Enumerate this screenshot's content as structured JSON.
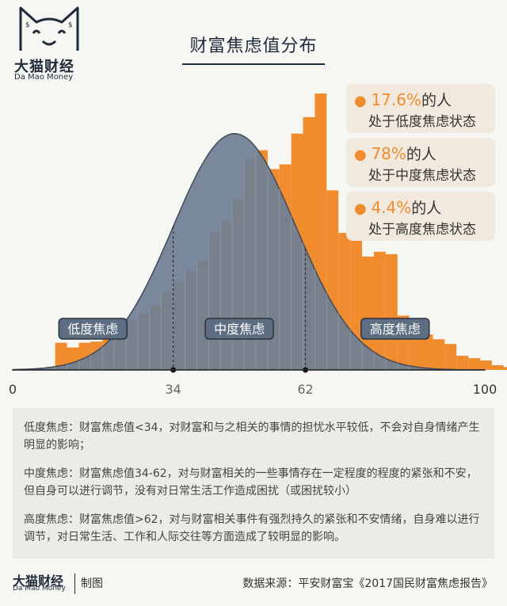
{
  "brand": {
    "cn": "大猫财经",
    "en": "Da Mao Money"
  },
  "title": "财富焦虑值分布",
  "stats": [
    {
      "pct": "17.6%",
      "suffix": "的人",
      "line2": "处于低度焦虑状态"
    },
    {
      "pct": "78%",
      "suffix": "的人",
      "line2": "处于中度焦虑状态"
    },
    {
      "pct": "4.4%",
      "suffix": "的人",
      "line2": "处于高度焦虑状态"
    }
  ],
  "colors": {
    "bar": "#f08c2e",
    "curve_fill": "#6f7f92",
    "curve_stroke": "#3f4a58",
    "label_fill": "#5d6e82",
    "label_stroke": "#2c3440"
  },
  "chart_data": {
    "type": "bar",
    "xlim": [
      0,
      100
    ],
    "ticks": [
      "0",
      "34",
      "62",
      "100"
    ],
    "tick_values": [
      0,
      34,
      62,
      100
    ],
    "thresholds": [
      34,
      62
    ],
    "regions": [
      {
        "label": "低度焦虑",
        "x": 17
      },
      {
        "label": "中度焦虑",
        "x": 48
      },
      {
        "label": "高度焦虑",
        "x": 81
      }
    ],
    "bin_start": 9,
    "bin_width": 2.5,
    "values": [
      1.15,
      0.95,
      1.15,
      1.2,
      1.8,
      1.8,
      2.1,
      2.4,
      2.7,
      3.3,
      3.7,
      4.2,
      4.6,
      5.8,
      6.3,
      7.2,
      8.9,
      9.3,
      8.5,
      8.7,
      10.0,
      10.7,
      11.7,
      7.6,
      5.8,
      5.6,
      4.8,
      5.0,
      4.9,
      2.3,
      2.1,
      1.5,
      1.3,
      1.1,
      0.6,
      0.5,
      0.4,
      0.2,
      0.12,
      0.1
    ],
    "curve": {
      "mean": 47,
      "sd": 13,
      "peak": 10.0
    }
  },
  "notes": [
    "低度焦虑：财富焦虑值<34，对财富和与之相关的事情的担忧水平较低，不会对自身情绪产生明显的影响；",
    "中度焦虑：财富焦虑值34-62，对与财富相关的一些事情存在一定程度的程度的紧张和不安，但自身可以进行调节，没有对日常生活工作造成困扰（或困扰较小）",
    "高度焦虑：财富焦虑值>62，对与财富相关事件有强烈持久的紧张和不安情绪，自身难以进行调节，对日常生活、工作和人际交往等方面造成了较明显的影响。"
  ],
  "footer": {
    "made": "制图",
    "source": "数据来源：平安财富宝《2017国民财富焦虑报告》"
  }
}
